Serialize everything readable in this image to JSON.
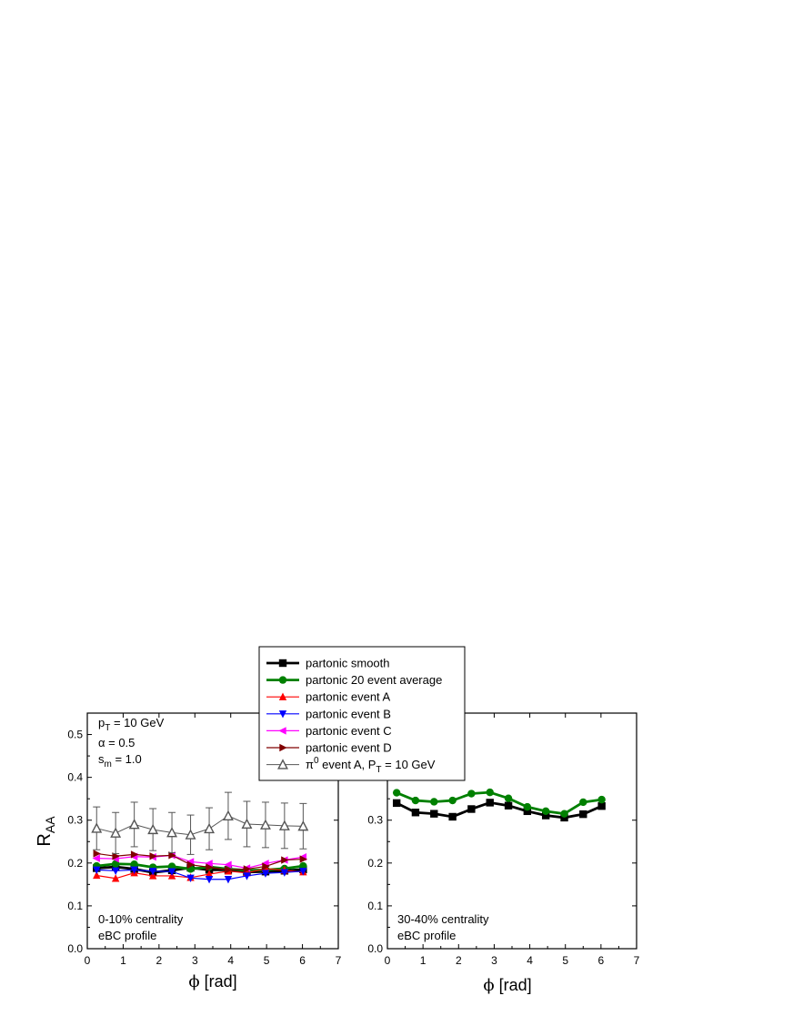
{
  "figure": {
    "ylabel_main": "R",
    "ylabel_sub": "AA",
    "xlabel_sym": "ϕ",
    "xlabel_unit": " [rad]"
  },
  "legend": [
    {
      "label": "partonic smooth",
      "sup": "",
      "sub": "",
      "tail": ""
    },
    {
      "label": "partonic 20 event average",
      "sup": "",
      "sub": "",
      "tail": ""
    },
    {
      "label": "partonic event A",
      "sup": "",
      "sub": "",
      "tail": ""
    },
    {
      "label": "partonic event B",
      "sup": "",
      "sub": "",
      "tail": ""
    },
    {
      "label": "partonic event C",
      "sup": "",
      "sub": "",
      "tail": ""
    },
    {
      "label": "partonic event D",
      "sup": "",
      "sub": "",
      "tail": ""
    },
    {
      "label": "π",
      "sup": "0",
      "sub": "T",
      "mid": " event A, P",
      "tail": " = 10 GeV"
    }
  ],
  "left_panel": {
    "params": {
      "pt_main": "p",
      "pt_sub": "T",
      "pt_tail": " = 10 GeV",
      "alpha": "α = 0.5",
      "sm_main": "s",
      "sm_sub": "m",
      "sm_tail": " = 1.0"
    },
    "annotation_line1": "0-10% centrality",
    "annotation_line2": "eBC profile"
  },
  "right_panel": {
    "annotation_line1": "30-40% centrality",
    "annotation_line2": "eBC profile"
  },
  "chart_data": [
    {
      "type": "line",
      "panel": "left",
      "xlabel": "ϕ [rad]",
      "ylabel": "RAA",
      "xlim": [
        0,
        7
      ],
      "ylim": [
        0,
        0.55
      ],
      "xticks": [
        0,
        1,
        2,
        3,
        4,
        5,
        6,
        7
      ],
      "yticks": [
        0.0,
        0.1,
        0.2,
        0.3,
        0.4,
        0.5
      ],
      "grid": false,
      "legend_position": "top-center",
      "x": [
        0.26,
        0.79,
        1.31,
        1.83,
        2.36,
        2.88,
        3.4,
        3.93,
        4.45,
        4.97,
        5.5,
        6.02
      ],
      "series": [
        {
          "name": "partonic smooth",
          "color": "#000000",
          "marker": "square",
          "lineWidth": 2.8,
          "values": [
            0.188,
            0.191,
            0.186,
            0.178,
            0.183,
            0.189,
            0.184,
            0.184,
            0.179,
            0.18,
            0.182,
            0.185
          ]
        },
        {
          "name": "partonic 20 event average",
          "color": "#008000",
          "marker": "circle",
          "lineWidth": 2.8,
          "values": [
            0.193,
            0.198,
            0.197,
            0.19,
            0.192,
            0.186,
            0.191,
            0.186,
            0.183,
            0.184,
            0.187,
            0.193
          ]
        },
        {
          "name": "partonic event A",
          "color": "#ff0000",
          "marker": "triangle-up",
          "lineWidth": 1.2,
          "values": [
            0.171,
            0.164,
            0.177,
            0.17,
            0.17,
            0.166,
            0.174,
            0.181,
            0.177,
            0.187,
            0.183,
            0.179
          ]
        },
        {
          "name": "partonic event B",
          "color": "#0000ff",
          "marker": "triangle-down",
          "lineWidth": 1.2,
          "values": [
            0.184,
            0.182,
            0.184,
            0.181,
            0.18,
            0.165,
            0.162,
            0.162,
            0.17,
            0.176,
            0.178,
            0.181
          ]
        },
        {
          "name": "partonic event C",
          "color": "#ff00ff",
          "marker": "triangle-left",
          "lineWidth": 1.2,
          "values": [
            0.211,
            0.21,
            0.215,
            0.214,
            0.218,
            0.203,
            0.199,
            0.196,
            0.188,
            0.199,
            0.207,
            0.214
          ]
        },
        {
          "name": "partonic event D",
          "color": "#800000",
          "marker": "triangle-right",
          "lineWidth": 1.2,
          "values": [
            0.222,
            0.216,
            0.22,
            0.216,
            0.218,
            0.196,
            0.19,
            0.184,
            0.186,
            0.192,
            0.207,
            0.209
          ]
        },
        {
          "name": "π0 event A, PT = 10 GeV",
          "color": "#555555",
          "marker": "open-triangle-up",
          "lineWidth": 1.0,
          "values": [
            0.281,
            0.27,
            0.29,
            0.278,
            0.271,
            0.266,
            0.28,
            0.31,
            0.291,
            0.289,
            0.287,
            0.286
          ],
          "error": [
            0.05,
            0.048,
            0.052,
            0.049,
            0.047,
            0.046,
            0.049,
            0.055,
            0.053,
            0.053,
            0.053,
            0.053
          ]
        }
      ]
    },
    {
      "type": "line",
      "panel": "right",
      "xlabel": "ϕ [rad]",
      "ylabel": "",
      "xlim": [
        0,
        7
      ],
      "ylim": [
        0,
        0.55
      ],
      "xticks": [
        0,
        1,
        2,
        3,
        4,
        5,
        6,
        7
      ],
      "yticks": [
        0.0,
        0.1,
        0.2,
        0.3
      ],
      "grid": false,
      "x": [
        0.26,
        0.79,
        1.31,
        1.83,
        2.36,
        2.88,
        3.4,
        3.93,
        4.45,
        4.97,
        5.5,
        6.02
      ],
      "series": [
        {
          "name": "partonic smooth",
          "color": "#000000",
          "marker": "square",
          "lineWidth": 2.8,
          "values": [
            0.34,
            0.318,
            0.315,
            0.308,
            0.326,
            0.341,
            0.334,
            0.321,
            0.311,
            0.306,
            0.314,
            0.333
          ]
        },
        {
          "name": "partonic 20 event average",
          "color": "#008000",
          "marker": "circle",
          "lineWidth": 2.8,
          "values": [
            0.364,
            0.346,
            0.343,
            0.346,
            0.362,
            0.365,
            0.351,
            0.331,
            0.321,
            0.315,
            0.342,
            0.348
          ]
        }
      ]
    }
  ]
}
